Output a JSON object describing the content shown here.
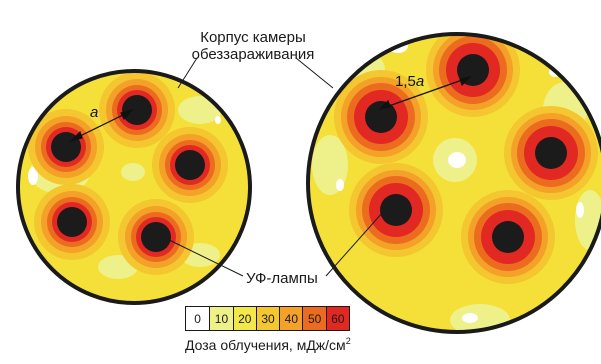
{
  "housing_label": {
    "line1": "Корпус камеры",
    "line2": "обеззараживания"
  },
  "lamps_label": "УФ-лампы",
  "distance_small": "a",
  "distance_large": {
    "number": "1,5",
    "unit": "a"
  },
  "colors": {
    "background": "#f5e03a",
    "lamp": "#1b1b1b",
    "outline": "#1a1a1a",
    "level_0": "#ffffff",
    "level_10": "#eef089",
    "level_20": "#f2e84a",
    "level_30": "#f4c62f",
    "level_40": "#f3a128",
    "level_50": "#ec6c1f",
    "level_60": "#e12822"
  },
  "scale": {
    "items": [
      {
        "label": "0",
        "color": "#ffffff"
      },
      {
        "label": "10",
        "color": "#eef089"
      },
      {
        "label": "20",
        "color": "#f2e84a"
      },
      {
        "label": "30",
        "color": "#f4c62f"
      },
      {
        "label": "40",
        "color": "#f3a128"
      },
      {
        "label": "50",
        "color": "#ec6c1f"
      },
      {
        "label": "60",
        "color": "#e12822"
      }
    ],
    "caption": "Доза облучения, мДж/см",
    "caption_sup": "2"
  }
}
